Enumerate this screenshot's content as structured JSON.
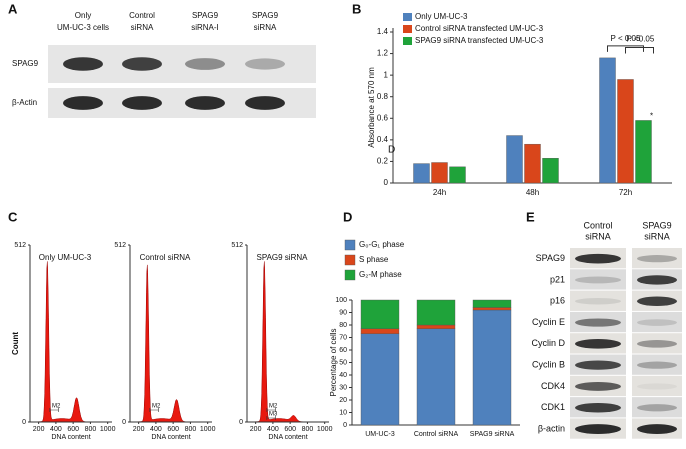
{
  "panel_letters": [
    "A",
    "B",
    "C",
    "D",
    "E"
  ],
  "western_a": {
    "columns": [
      [
        "Only",
        "UM-UC-3 cells"
      ],
      [
        "Control",
        "siRNA"
      ],
      [
        "SPAG9",
        "siRNA-I"
      ],
      [
        "SPAG9",
        "siRNA"
      ]
    ],
    "rows": [
      "SPAG9",
      "β-Actin"
    ]
  },
  "flow_c": {
    "plots": [
      {
        "title": "Only UM-UC-3",
        "markers": [
          "M2"
        ]
      },
      {
        "title": "Control siRNA",
        "markers": [
          "M2"
        ]
      },
      {
        "title": "SPAG9  siRNA",
        "markers": [
          "M2",
          "M3"
        ]
      }
    ],
    "ylabel": "Count",
    "xlabel": "DNA content",
    "ylim": [
      0,
      512
    ],
    "yticks": [
      0,
      512
    ],
    "xlim": [
      100,
      1050
    ],
    "xticks": [
      200,
      400,
      600,
      800,
      1000
    ]
  },
  "western_e": {
    "columns": [
      [
        "Control",
        "siRNA"
      ],
      [
        "SPAG9",
        "siRNA"
      ]
    ],
    "rows": [
      "SPAG9",
      "p21",
      "p16",
      "Cyclin E",
      "Cyclin D",
      "Cyclin B",
      "CDK4",
      "CDK1",
      "β-actin"
    ]
  },
  "chart_data": [
    {
      "type": "bar",
      "ylabel": "Absorbance at 570 nm",
      "categories": [
        "24h",
        "48h",
        "72h"
      ],
      "series": [
        {
          "name": "Only UM-UC-3",
          "color": "#4f81bd",
          "values": [
            0.18,
            0.44,
            1.16
          ]
        },
        {
          "name": "Control siRNA transfected UM-UC-3",
          "color": "#d9461b",
          "values": [
            0.19,
            0.36,
            0.96
          ]
        },
        {
          "name": "SPAG9 siRNA transfected UM-UC-3",
          "color": "#1fa33a",
          "values": [
            0.15,
            0.23,
            0.58
          ]
        }
      ],
      "ylim": [
        0,
        1.4
      ],
      "yticks": [
        0,
        0.2,
        0.4,
        0.6,
        0.8,
        1,
        1.2,
        1.4
      ],
      "legend": "top-left",
      "annotations": [
        "P < 0.05",
        "P <0.05",
        "*",
        "D"
      ]
    },
    {
      "type": "stacked-bar",
      "ylabel": "Percentage of cells",
      "categories": [
        "UM-UC-3",
        "Control siRNA",
        "SPAG9  siRNA"
      ],
      "series": [
        {
          "name": "G₀-G₁ phase",
          "color": "#4f81bd",
          "values": [
            73,
            77,
            92
          ]
        },
        {
          "name": "S phase",
          "color": "#d9461b",
          "values": [
            4,
            3,
            2
          ]
        },
        {
          "name": "G₂-M phase",
          "color": "#1fa33a",
          "values": [
            23,
            20,
            6
          ]
        }
      ],
      "ylim": [
        0,
        100
      ],
      "yticks": [
        0,
        10,
        20,
        30,
        40,
        50,
        60,
        70,
        80,
        90,
        100
      ],
      "legend": "top-left"
    }
  ]
}
